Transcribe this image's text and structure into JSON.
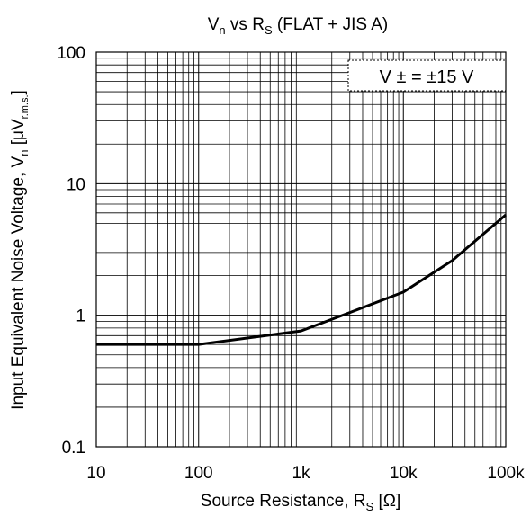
{
  "chart_data": {
    "type": "line",
    "title": {
      "base": "V",
      "sub": "n",
      "mid": " vs R",
      "sub2": "S",
      "rest": " (FLAT + JIS A)"
    },
    "xlabel": {
      "base": "Source Resistance, R",
      "sub": "S",
      "rest": " [Ω]"
    },
    "ylabel": {
      "base": "Input Equivalent Noise Voltage, V",
      "sub": "n",
      "mid": " [μV",
      "sub2": "r.m.s.",
      "rest": "]"
    },
    "x_scale": "log",
    "y_scale": "log",
    "xlim": [
      10,
      100000
    ],
    "ylim": [
      0.1,
      100
    ],
    "x_ticks": [
      {
        "value": 10,
        "label": "10"
      },
      {
        "value": 100,
        "label": "100"
      },
      {
        "value": 1000,
        "label": "1k"
      },
      {
        "value": 10000,
        "label": "10k"
      },
      {
        "value": 100000,
        "label": "100k"
      }
    ],
    "y_ticks": [
      {
        "value": 0.1,
        "label": "0.1"
      },
      {
        "value": 1,
        "label": "1"
      },
      {
        "value": 10,
        "label": "10"
      },
      {
        "value": 100,
        "label": "100"
      }
    ],
    "grid": true,
    "annotation": {
      "text": "V ± = ±15 V",
      "position": "top-right"
    },
    "series": [
      {
        "color": "#000000",
        "x": [
          10,
          100,
          1000,
          3000,
          10000,
          30000,
          100000
        ],
        "y": [
          0.6,
          0.6,
          0.76,
          1.05,
          1.5,
          2.6,
          5.8
        ]
      }
    ]
  }
}
